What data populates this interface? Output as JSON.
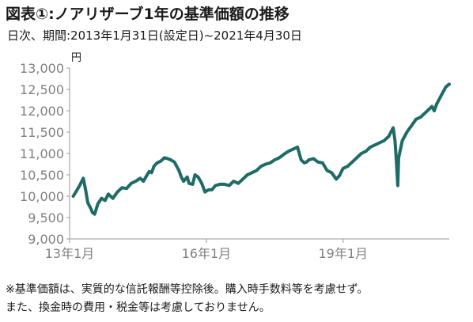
{
  "title": "図表①:ノアリザーブ1年の基準価額の推移",
  "subtitle": "日次、期間:2013年1月31日(設定日)~2021年4月30日",
  "unit": "円",
  "notes": [
    "※基準価額は、実質的な信託報酬等控除後。購入時手数料等を考慮せず。",
    "また、換金時の費用・税金等は考慮しておりません。"
  ],
  "colors": {
    "line": "#1f6b66",
    "axis": "#999999",
    "tick_text": "#808080"
  },
  "chart_data": {
    "type": "line",
    "title": "図表①:ノアリザーブ1年の基準価額の推移",
    "ylabel": "円",
    "xlabel": "",
    "ylim": [
      9000,
      13000
    ],
    "yticks": [
      "13,000",
      "12,500",
      "12,000",
      "11,500",
      "11,000",
      "10,500",
      "10,000",
      "9,500",
      "9,000"
    ],
    "ytick_values": [
      13000,
      12500,
      12000,
      11500,
      11000,
      10500,
      10000,
      9500,
      9000
    ],
    "xticks": [
      "13年1月",
      "16年1月",
      "19年1月"
    ],
    "xtick_values": [
      2013.0,
      2016.0,
      2019.0
    ],
    "xlim": [
      2013.0,
      2021.33
    ],
    "grid": false,
    "series": [
      {
        "x": [
          2013.08,
          2013.15,
          2013.22,
          2013.3,
          2013.35,
          2013.4,
          2013.47,
          2013.5,
          2013.55,
          2013.62,
          2013.7,
          2013.78,
          2013.85,
          2013.95,
          2014.05,
          2014.15,
          2014.25,
          2014.35,
          2014.45,
          2014.55,
          2014.62,
          2014.7,
          2014.75,
          2014.8,
          2014.85,
          2014.92,
          2015.0,
          2015.08,
          2015.15,
          2015.22,
          2015.3,
          2015.4,
          2015.45,
          2015.5,
          2015.58,
          2015.62,
          2015.7,
          2015.75,
          2015.82,
          2015.9,
          2015.97,
          2016.05,
          2016.12,
          2016.2,
          2016.3,
          2016.4,
          2016.5,
          2016.6,
          2016.7,
          2016.8,
          2016.9,
          2017.0,
          2017.1,
          2017.2,
          2017.3,
          2017.4,
          2017.5,
          2017.6,
          2017.7,
          2017.8,
          2017.9,
          2018.0,
          2018.08,
          2018.15,
          2018.2,
          2018.25,
          2018.35,
          2018.45,
          2018.55,
          2018.65,
          2018.75,
          2018.85,
          2018.92,
          2019.0,
          2019.1,
          2019.2,
          2019.3,
          2019.4,
          2019.5,
          2019.6,
          2019.7,
          2019.8,
          2019.9,
          2020.0,
          2020.05,
          2020.1,
          2020.14,
          2020.17,
          2020.2,
          2020.22,
          2020.26,
          2020.3,
          2020.4,
          2020.5,
          2020.6,
          2020.7,
          2020.8,
          2020.9,
          2020.95,
          2021.0,
          2021.05,
          2021.1,
          2021.15,
          2021.2,
          2021.25,
          2021.3,
          2021.33
        ],
        "y": [
          10000,
          10120,
          10250,
          10420,
          10150,
          9850,
          9700,
          9620,
          9580,
          9820,
          9950,
          9900,
          10050,
          9950,
          10100,
          10200,
          10180,
          10300,
          10350,
          10420,
          10350,
          10500,
          10580,
          10550,
          10700,
          10780,
          10820,
          10900,
          10880,
          10850,
          10800,
          10600,
          10450,
          10350,
          10450,
          10300,
          10280,
          10500,
          10450,
          10300,
          10100,
          10150,
          10150,
          10250,
          10280,
          10280,
          10250,
          10350,
          10300,
          10400,
          10500,
          10550,
          10600,
          10700,
          10750,
          10780,
          10850,
          10900,
          10980,
          11050,
          11100,
          11150,
          10850,
          10780,
          10800,
          10850,
          10880,
          10800,
          10780,
          10600,
          10550,
          10400,
          10480,
          10650,
          10700,
          10800,
          10900,
          11000,
          11050,
          11150,
          11200,
          11250,
          11300,
          11400,
          11500,
          11600,
          11300,
          10800,
          10250,
          10900,
          11100,
          11300,
          11500,
          11650,
          11800,
          11850,
          11950,
          12050,
          12100,
          12000,
          12150,
          12250,
          12350,
          12450,
          12550,
          12600,
          12620
        ]
      }
    ]
  }
}
